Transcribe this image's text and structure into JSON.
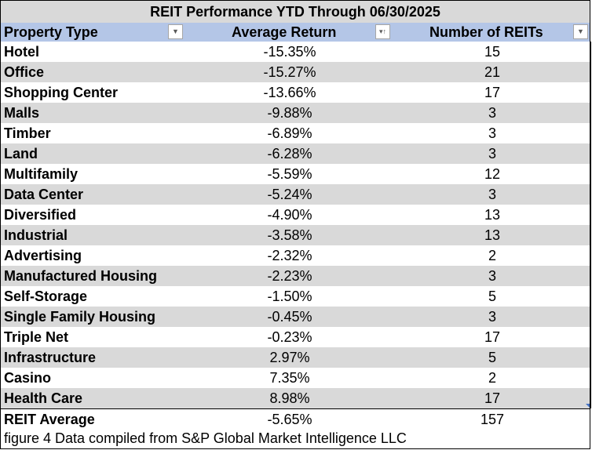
{
  "title": "REIT Performance YTD Through 06/30/2025",
  "header": {
    "col1": "Property Type",
    "col2": "Average Return",
    "col3": "Number of REITs",
    "filter_icon": "▼",
    "sort_icon": "▾↑"
  },
  "rows": [
    {
      "type": "Hotel",
      "ret": "-15.35%",
      "count": "15"
    },
    {
      "type": "Office",
      "ret": "-15.27%",
      "count": "21"
    },
    {
      "type": "Shopping Center",
      "ret": "-13.66%",
      "count": "17"
    },
    {
      "type": "Malls",
      "ret": "-9.88%",
      "count": "3"
    },
    {
      "type": "Timber",
      "ret": "-6.89%",
      "count": "3"
    },
    {
      "type": "Land",
      "ret": "-6.28%",
      "count": "3"
    },
    {
      "type": "Multifamily",
      "ret": "-5.59%",
      "count": "12"
    },
    {
      "type": "Data Center",
      "ret": "-5.24%",
      "count": "3"
    },
    {
      "type": "Diversified",
      "ret": "-4.90%",
      "count": "13"
    },
    {
      "type": "Industrial",
      "ret": "-3.58%",
      "count": "13"
    },
    {
      "type": "Advertising",
      "ret": "-2.32%",
      "count": "2"
    },
    {
      "type": "Manufactured Housing",
      "ret": "-2.23%",
      "count": "3"
    },
    {
      "type": "Self-Storage",
      "ret": "-1.50%",
      "count": "5"
    },
    {
      "type": "Single Family Housing",
      "ret": "-0.45%",
      "count": "3"
    },
    {
      "type": "Triple Net",
      "ret": "-0.23%",
      "count": "17"
    },
    {
      "type": "Infrastructure",
      "ret": "2.97%",
      "count": "5"
    },
    {
      "type": "Casino",
      "ret": "7.35%",
      "count": "2"
    },
    {
      "type": "Health Care",
      "ret": "8.98%",
      "count": "17"
    }
  ],
  "total": {
    "label": "REIT Average",
    "ret": "-5.65%",
    "count": "157"
  },
  "caption": "figure 4 Data compiled from S&P Global Market Intelligence LLC",
  "colors": {
    "header": "#b4c6e7",
    "title": "#d9d9d9",
    "stripe": "#d9d9d9"
  }
}
